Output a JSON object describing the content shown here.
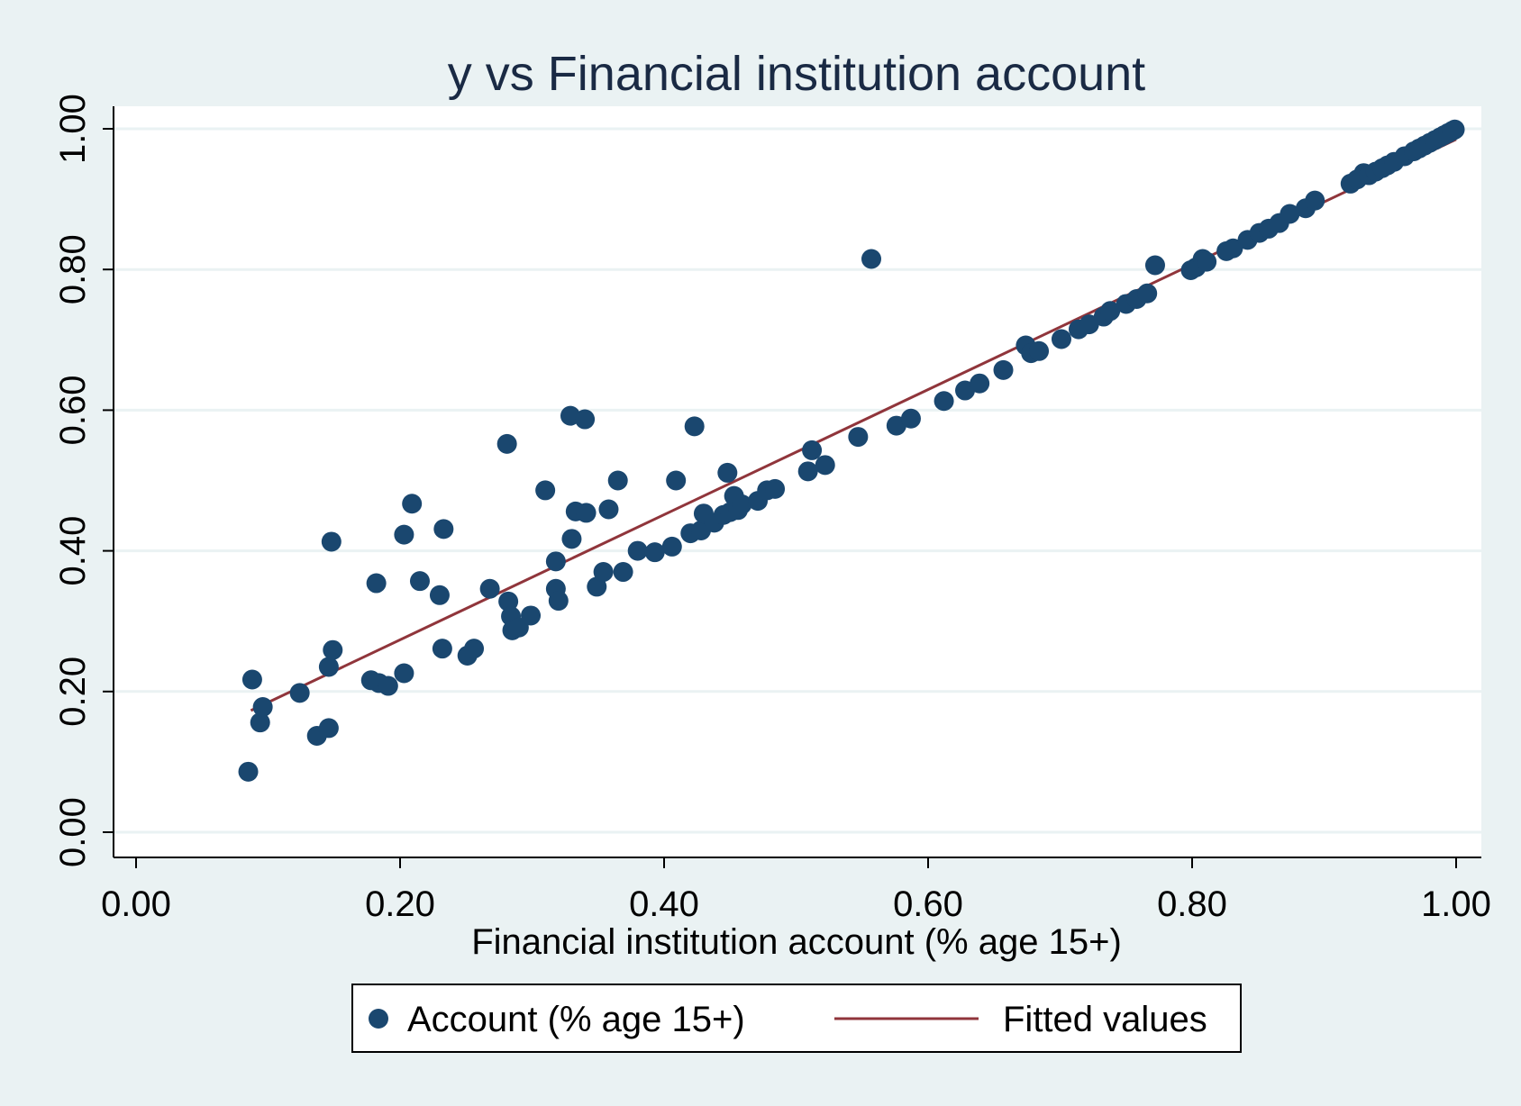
{
  "colors": {
    "background": "#eaf2f3",
    "plot_background": "#ffffff",
    "grid": "#eaf2f3",
    "marker": "#1a476f",
    "fit_line": "#90353b",
    "text": "#000000",
    "title": "#1a2a44"
  },
  "chart_data": {
    "type": "scatter",
    "title": "y vs Financial institution account",
    "xlabel": "Financial institution account (% age 15+)",
    "ylabel": "",
    "xlim": [
      0.0,
      1.0
    ],
    "ylim": [
      0.0,
      1.0
    ],
    "xticks": [
      0.0,
      0.2,
      0.4,
      0.6,
      0.8,
      1.0
    ],
    "yticks": [
      0.0,
      0.2,
      0.4,
      0.6,
      0.8,
      1.0
    ],
    "xtick_labels": [
      "0.00",
      "0.20",
      "0.40",
      "0.60",
      "0.80",
      "1.00"
    ],
    "ytick_labels": [
      "0.00",
      "0.20",
      "0.40",
      "0.60",
      "0.80",
      "1.00"
    ],
    "grid": true,
    "legend_position": "bottom",
    "series": [
      {
        "name": "Account (% age 15+)",
        "kind": "scatter",
        "points": [
          [
            0.085,
            0.086
          ],
          [
            0.088,
            0.217
          ],
          [
            0.094,
            0.156
          ],
          [
            0.096,
            0.178
          ],
          [
            0.124,
            0.198
          ],
          [
            0.137,
            0.137
          ],
          [
            0.146,
            0.148
          ],
          [
            0.146,
            0.235
          ],
          [
            0.148,
            0.413
          ],
          [
            0.149,
            0.259
          ],
          [
            0.178,
            0.216
          ],
          [
            0.182,
            0.354
          ],
          [
            0.184,
            0.212
          ],
          [
            0.191,
            0.208
          ],
          [
            0.203,
            0.423
          ],
          [
            0.203,
            0.226
          ],
          [
            0.209,
            0.467
          ],
          [
            0.215,
            0.357
          ],
          [
            0.23,
            0.337
          ],
          [
            0.232,
            0.261
          ],
          [
            0.233,
            0.431
          ],
          [
            0.251,
            0.251
          ],
          [
            0.256,
            0.261
          ],
          [
            0.268,
            0.346
          ],
          [
            0.281,
            0.552
          ],
          [
            0.282,
            0.328
          ],
          [
            0.284,
            0.307
          ],
          [
            0.285,
            0.287
          ],
          [
            0.29,
            0.291
          ],
          [
            0.299,
            0.308
          ],
          [
            0.31,
            0.486
          ],
          [
            0.318,
            0.385
          ],
          [
            0.318,
            0.346
          ],
          [
            0.32,
            0.329
          ],
          [
            0.329,
            0.592
          ],
          [
            0.33,
            0.417
          ],
          [
            0.333,
            0.456
          ],
          [
            0.34,
            0.587
          ],
          [
            0.341,
            0.454
          ],
          [
            0.349,
            0.349
          ],
          [
            0.354,
            0.37
          ],
          [
            0.358,
            0.459
          ],
          [
            0.365,
            0.5
          ],
          [
            0.369,
            0.37
          ],
          [
            0.38,
            0.4
          ],
          [
            0.393,
            0.398
          ],
          [
            0.406,
            0.406
          ],
          [
            0.409,
            0.5
          ],
          [
            0.42,
            0.425
          ],
          [
            0.423,
            0.577
          ],
          [
            0.428,
            0.429
          ],
          [
            0.43,
            0.453
          ],
          [
            0.438,
            0.44
          ],
          [
            0.445,
            0.451
          ],
          [
            0.448,
            0.511
          ],
          [
            0.45,
            0.455
          ],
          [
            0.453,
            0.478
          ],
          [
            0.456,
            0.458
          ],
          [
            0.459,
            0.466
          ],
          [
            0.471,
            0.471
          ],
          [
            0.478,
            0.486
          ],
          [
            0.484,
            0.488
          ],
          [
            0.509,
            0.513
          ],
          [
            0.512,
            0.543
          ],
          [
            0.522,
            0.522
          ],
          [
            0.547,
            0.562
          ],
          [
            0.557,
            0.815
          ],
          [
            0.576,
            0.578
          ],
          [
            0.587,
            0.588
          ],
          [
            0.612,
            0.613
          ],
          [
            0.628,
            0.628
          ],
          [
            0.639,
            0.638
          ],
          [
            0.657,
            0.657
          ],
          [
            0.674,
            0.692
          ],
          [
            0.678,
            0.681
          ],
          [
            0.684,
            0.684
          ],
          [
            0.701,
            0.701
          ],
          [
            0.714,
            0.715
          ],
          [
            0.722,
            0.722
          ],
          [
            0.733,
            0.733
          ],
          [
            0.738,
            0.741
          ],
          [
            0.75,
            0.751
          ],
          [
            0.758,
            0.758
          ],
          [
            0.766,
            0.766
          ],
          [
            0.772,
            0.806
          ],
          [
            0.799,
            0.799
          ],
          [
            0.803,
            0.803
          ],
          [
            0.808,
            0.815
          ],
          [
            0.811,
            0.811
          ],
          [
            0.826,
            0.826
          ],
          [
            0.831,
            0.83
          ],
          [
            0.842,
            0.842
          ],
          [
            0.851,
            0.852
          ],
          [
            0.858,
            0.858
          ],
          [
            0.866,
            0.866
          ],
          [
            0.874,
            0.879
          ],
          [
            0.886,
            0.887
          ],
          [
            0.893,
            0.898
          ],
          [
            0.92,
            0.922
          ],
          [
            0.925,
            0.928
          ],
          [
            0.93,
            0.937
          ],
          [
            0.934,
            0.934
          ],
          [
            0.939,
            0.939
          ],
          [
            0.944,
            0.944
          ],
          [
            0.948,
            0.948
          ],
          [
            0.953,
            0.953
          ],
          [
            0.961,
            0.961
          ],
          [
            0.968,
            0.968
          ],
          [
            0.972,
            0.972
          ],
          [
            0.976,
            0.976
          ],
          [
            0.98,
            0.98
          ],
          [
            0.984,
            0.984
          ],
          [
            0.988,
            0.988
          ],
          [
            0.991,
            0.991
          ],
          [
            0.994,
            0.994
          ],
          [
            0.997,
            0.997
          ],
          [
            0.999,
            0.999
          ]
        ]
      },
      {
        "name": "Fitted values",
        "kind": "line",
        "x": [
          0.087,
          1.0
        ],
        "y": [
          0.173,
          0.985
        ]
      }
    ]
  }
}
